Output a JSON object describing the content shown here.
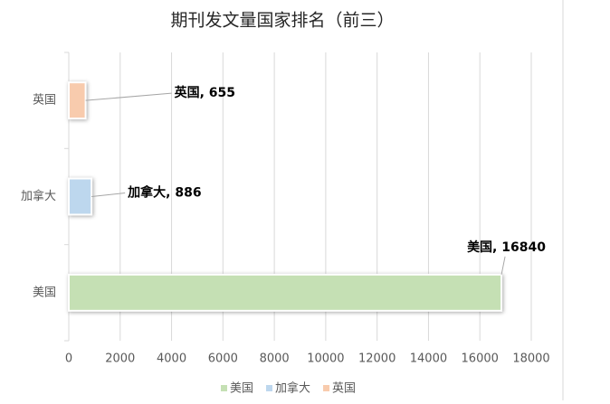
{
  "chart_data": {
    "type": "bar",
    "orientation": "horizontal",
    "title": "期刊发文量国家排名（前三）",
    "categories": [
      "美国",
      "加拿大",
      "英国"
    ],
    "values": [
      16840,
      886,
      655
    ],
    "value_labels": [
      "美国, 16840",
      "加拿大, 886",
      "英国, 655"
    ],
    "colors": [
      "#c5e0b4",
      "#bdd7ee",
      "#f8cbad"
    ],
    "xlim": [
      0,
      18000
    ],
    "xticks": [
      0,
      2000,
      4000,
      6000,
      8000,
      10000,
      12000,
      14000,
      16000,
      18000
    ],
    "grid": true,
    "legend": "bottom"
  }
}
